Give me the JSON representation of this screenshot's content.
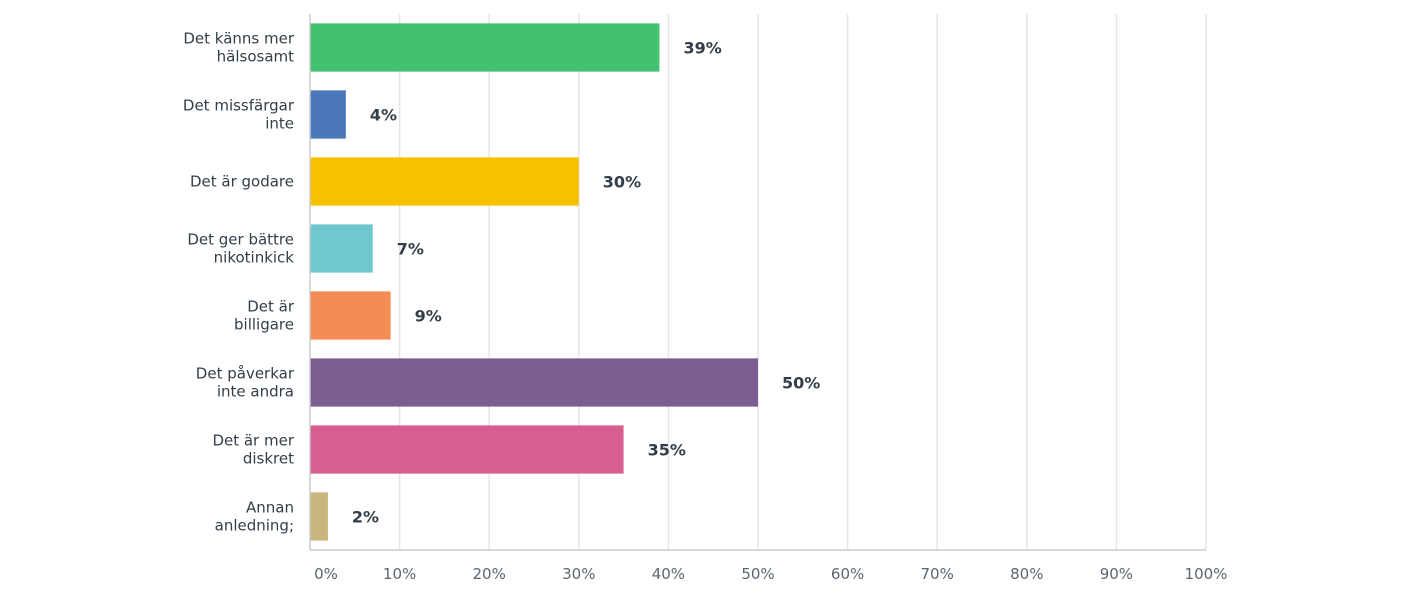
{
  "chart_data": {
    "type": "bar",
    "orientation": "horizontal",
    "title": "",
    "xlabel": "",
    "ylabel": "",
    "categories": [
      [
        "Det känns mer",
        "hälsosamt"
      ],
      [
        "Det missfärgar",
        "inte"
      ],
      [
        "Det är godare"
      ],
      [
        "Det ger bättre",
        "nikotinkick"
      ],
      [
        "Det är",
        "billigare"
      ],
      [
        "Det påverkar",
        "inte andra"
      ],
      [
        "Det är mer",
        "diskret"
      ],
      [
        "Annan",
        "anledning;"
      ]
    ],
    "values": [
      39,
      4,
      30,
      7,
      9,
      50,
      35,
      2
    ],
    "value_labels": [
      "39%",
      "4%",
      "30%",
      "7%",
      "9%",
      "50%",
      "35%",
      "2%"
    ],
    "colors": [
      "#43c16f",
      "#4a78b8",
      "#f7c000",
      "#6ec8cd",
      "#f68c55",
      "#7d5d91",
      "#d65f8f",
      "#c9b67c"
    ],
    "xlim": [
      0,
      100
    ],
    "x_ticks": [
      "0%",
      "10%",
      "20%",
      "30%",
      "40%",
      "50%",
      "60%",
      "70%",
      "80%",
      "90%",
      "100%"
    ],
    "grid": true,
    "legend": "none"
  }
}
